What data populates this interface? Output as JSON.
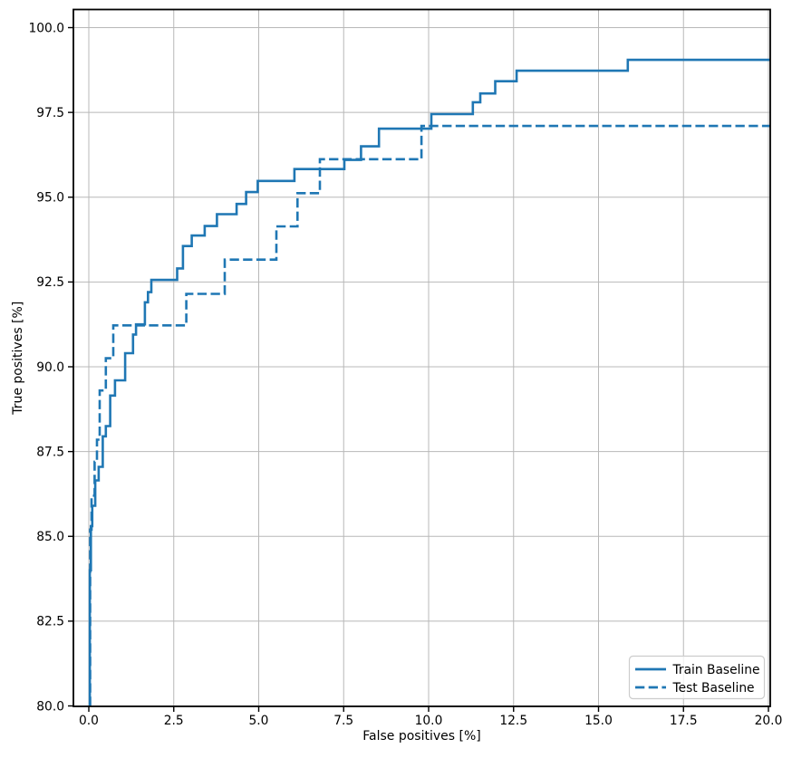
{
  "figure": {
    "background": "#ffffff",
    "accent_color": "#1f77b4",
    "grid_color": "#b8b8b8",
    "spine_color": "#000000"
  },
  "chart_data": {
    "type": "line",
    "subtype": "step",
    "title": "",
    "xlabel": "False positives [%]",
    "ylabel": "True positives [%]",
    "xlim": [
      -0.45,
      20.05
    ],
    "ylim": [
      80.0,
      100.55
    ],
    "grid": true,
    "legend_position": "lower right",
    "x_ticks": [
      0.0,
      2.5,
      5.0,
      7.5,
      10.0,
      12.5,
      15.0,
      17.5,
      20.0
    ],
    "x_tick_labels": [
      "0.0",
      "2.5",
      "5.0",
      "7.5",
      "10.0",
      "12.5",
      "15.0",
      "17.5",
      "20.0"
    ],
    "y_ticks": [
      80.0,
      82.5,
      85.0,
      87.5,
      90.0,
      92.5,
      95.0,
      97.5,
      100.0
    ],
    "y_tick_labels": [
      "80.0",
      "82.5",
      "85.0",
      "87.5",
      "90.0",
      "92.5",
      "95.0",
      "97.5",
      "100.0"
    ],
    "legend": {
      "entries": [
        "Train Baseline",
        "Test Baseline"
      ]
    },
    "series": [
      {
        "name": "Train Baseline",
        "color": "#1f77b4",
        "line_style": "solid",
        "points": [
          [
            0.03,
            80.0
          ],
          [
            0.03,
            84.0
          ],
          [
            0.06,
            84.0
          ],
          [
            0.06,
            85.3
          ],
          [
            0.1,
            85.3
          ],
          [
            0.1,
            85.9
          ],
          [
            0.19,
            85.9
          ],
          [
            0.19,
            86.65
          ],
          [
            0.29,
            86.65
          ],
          [
            0.29,
            87.05
          ],
          [
            0.41,
            87.05
          ],
          [
            0.41,
            87.95
          ],
          [
            0.5,
            87.95
          ],
          [
            0.5,
            88.25
          ],
          [
            0.63,
            88.25
          ],
          [
            0.63,
            89.15
          ],
          [
            0.77,
            89.15
          ],
          [
            0.77,
            89.6
          ],
          [
            1.07,
            89.6
          ],
          [
            1.07,
            90.4
          ],
          [
            1.3,
            90.4
          ],
          [
            1.3,
            90.95
          ],
          [
            1.39,
            90.95
          ],
          [
            1.39,
            91.25
          ],
          [
            1.65,
            91.25
          ],
          [
            1.65,
            91.9
          ],
          [
            1.74,
            91.9
          ],
          [
            1.74,
            92.2
          ],
          [
            1.84,
            92.2
          ],
          [
            1.84,
            92.56
          ],
          [
            2.6,
            92.56
          ],
          [
            2.6,
            92.9
          ],
          [
            2.77,
            92.9
          ],
          [
            2.77,
            93.56
          ],
          [
            3.03,
            93.56
          ],
          [
            3.03,
            93.87
          ],
          [
            3.41,
            93.87
          ],
          [
            3.41,
            94.15
          ],
          [
            3.77,
            94.15
          ],
          [
            3.77,
            94.5
          ],
          [
            4.35,
            94.5
          ],
          [
            4.35,
            94.8
          ],
          [
            4.63,
            94.8
          ],
          [
            4.63,
            95.15
          ],
          [
            4.97,
            95.15
          ],
          [
            4.97,
            95.48
          ],
          [
            6.05,
            95.48
          ],
          [
            6.05,
            95.83
          ],
          [
            7.52,
            95.83
          ],
          [
            7.52,
            96.1
          ],
          [
            8.01,
            96.1
          ],
          [
            8.01,
            96.5
          ],
          [
            8.54,
            96.5
          ],
          [
            8.54,
            97.02
          ],
          [
            10.08,
            97.02
          ],
          [
            10.08,
            97.45
          ],
          [
            11.3,
            97.45
          ],
          [
            11.3,
            97.8
          ],
          [
            11.52,
            97.8
          ],
          [
            11.52,
            98.06
          ],
          [
            11.96,
            98.06
          ],
          [
            11.96,
            98.42
          ],
          [
            12.59,
            98.42
          ],
          [
            12.59,
            98.73
          ],
          [
            15.86,
            98.73
          ],
          [
            15.86,
            99.05
          ],
          [
            20.05,
            99.05
          ]
        ]
      },
      {
        "name": "Test Baseline",
        "color": "#1f77b4",
        "line_style": "dashed",
        "points": [
          [
            0.04,
            80.0
          ],
          [
            0.04,
            85.2
          ],
          [
            0.08,
            85.2
          ],
          [
            0.08,
            86.2
          ],
          [
            0.17,
            86.2
          ],
          [
            0.17,
            87.2
          ],
          [
            0.24,
            87.2
          ],
          [
            0.24,
            87.85
          ],
          [
            0.32,
            87.85
          ],
          [
            0.32,
            89.3
          ],
          [
            0.5,
            89.3
          ],
          [
            0.5,
            90.25
          ],
          [
            0.72,
            90.25
          ],
          [
            0.72,
            91.22
          ],
          [
            2.87,
            91.22
          ],
          [
            2.87,
            92.15
          ],
          [
            4.0,
            92.15
          ],
          [
            4.0,
            93.16
          ],
          [
            5.52,
            93.16
          ],
          [
            5.52,
            94.14
          ],
          [
            6.14,
            94.14
          ],
          [
            6.14,
            95.12
          ],
          [
            6.8,
            95.12
          ],
          [
            6.8,
            96.12
          ],
          [
            9.79,
            96.12
          ],
          [
            9.79,
            97.1
          ],
          [
            20.05,
            97.1
          ]
        ]
      }
    ]
  }
}
